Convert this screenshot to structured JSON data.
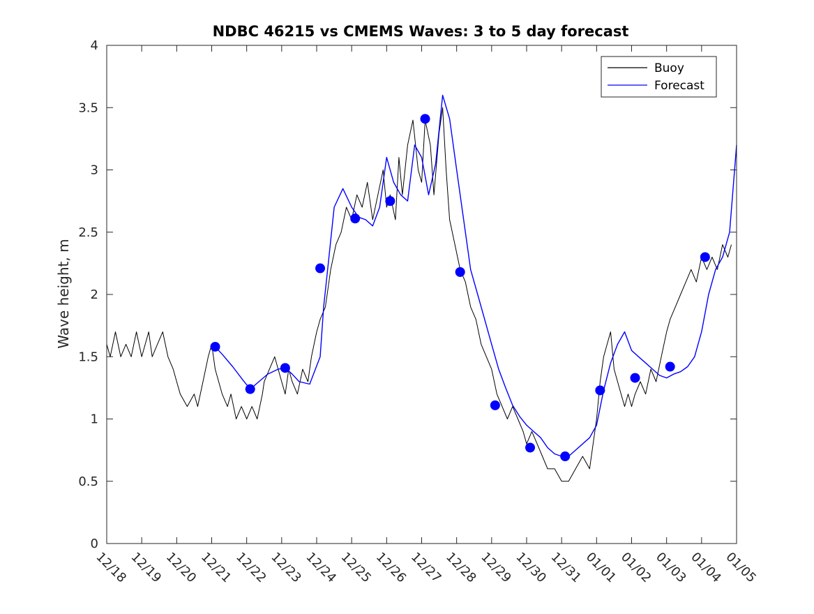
{
  "chart_data": {
    "type": "line",
    "title": "NDBC 46215 vs CMEMS Waves: 3 to 5 day forecast",
    "xlabel": "",
    "ylabel": "Wave height, m",
    "x_tick_labels": [
      "12/18",
      "12/19",
      "12/20",
      "12/21",
      "12/22",
      "12/23",
      "12/24",
      "12/25",
      "12/26",
      "12/27",
      "12/28",
      "12/29",
      "12/30",
      "12/31",
      "01/01",
      "01/02",
      "01/03",
      "01/04",
      "01/05"
    ],
    "y_ticks": [
      0,
      0.5,
      1,
      1.5,
      2,
      2.5,
      3,
      3.5,
      4
    ],
    "x_range_days": [
      0,
      18
    ],
    "ylim": [
      0,
      4
    ],
    "grid": false,
    "legend": {
      "placement": "top-right",
      "entries": [
        "Buoy",
        "Forecast"
      ]
    },
    "colors": {
      "buoy": "#000000",
      "forecast": "#0000ff",
      "axes": "#262626"
    },
    "series": [
      {
        "name": "Buoy",
        "style": "line",
        "x": [
          0,
          0.1,
          0.25,
          0.4,
          0.55,
          0.7,
          0.85,
          1.0,
          1.1,
          1.2,
          1.3,
          1.45,
          1.6,
          1.75,
          1.9,
          2.0,
          2.1,
          2.3,
          2.5,
          2.6,
          2.75,
          2.9,
          3.0,
          3.1,
          3.2,
          3.3,
          3.45,
          3.55,
          3.7,
          3.85,
          4.0,
          4.15,
          4.3,
          4.45,
          4.5,
          4.65,
          4.8,
          4.9,
          5.0,
          5.1,
          5.2,
          5.3,
          5.45,
          5.6,
          5.75,
          5.85,
          6.0,
          6.1,
          6.25,
          6.4,
          6.55,
          6.7,
          6.85,
          7.0,
          7.15,
          7.3,
          7.45,
          7.6,
          7.75,
          7.9,
          8.0,
          8.1,
          8.25,
          8.35,
          8.45,
          8.6,
          8.75,
          8.9,
          9.0,
          9.1,
          9.25,
          9.35,
          9.5,
          9.6,
          9.7,
          9.8,
          9.95,
          10.1,
          10.25,
          10.4,
          10.55,
          10.7,
          10.85,
          11.0,
          11.15,
          11.3,
          11.45,
          11.6,
          11.75,
          11.9,
          12.0,
          12.15,
          12.3,
          12.45,
          12.6,
          12.8,
          13.0,
          13.2,
          13.4,
          13.6,
          13.8,
          14.0,
          14.1,
          14.2,
          14.3,
          14.4,
          14.5,
          14.6,
          14.7,
          14.8,
          14.9,
          15.0,
          15.1,
          15.25,
          15.4,
          15.55,
          15.7,
          15.85,
          16.0,
          16.1,
          16.25,
          16.4,
          16.55,
          16.7,
          16.85,
          17.0,
          17.15,
          17.3,
          17.45,
          17.6,
          17.75,
          17.85
        ],
        "y": [
          1.6,
          1.5,
          1.7,
          1.5,
          1.6,
          1.5,
          1.7,
          1.5,
          1.6,
          1.7,
          1.5,
          1.6,
          1.7,
          1.5,
          1.4,
          1.3,
          1.2,
          1.1,
          1.2,
          1.1,
          1.3,
          1.5,
          1.6,
          1.4,
          1.3,
          1.2,
          1.1,
          1.2,
          1.0,
          1.1,
          1.0,
          1.1,
          1.0,
          1.2,
          1.3,
          1.4,
          1.5,
          1.4,
          1.3,
          1.2,
          1.4,
          1.3,
          1.2,
          1.4,
          1.3,
          1.5,
          1.7,
          1.8,
          1.9,
          2.2,
          2.4,
          2.5,
          2.7,
          2.6,
          2.8,
          2.7,
          2.9,
          2.6,
          2.8,
          3.0,
          2.7,
          2.8,
          2.6,
          3.1,
          2.8,
          3.2,
          3.4,
          3.0,
          2.9,
          3.4,
          3.2,
          2.8,
          3.3,
          3.5,
          3.0,
          2.6,
          2.4,
          2.2,
          2.1,
          1.9,
          1.8,
          1.6,
          1.5,
          1.4,
          1.2,
          1.1,
          1.0,
          1.1,
          1.0,
          0.9,
          0.8,
          0.9,
          0.8,
          0.7,
          0.6,
          0.6,
          0.5,
          0.5,
          0.6,
          0.7,
          0.6,
          1.0,
          1.3,
          1.5,
          1.6,
          1.7,
          1.4,
          1.3,
          1.2,
          1.1,
          1.2,
          1.1,
          1.2,
          1.3,
          1.2,
          1.4,
          1.3,
          1.5,
          1.7,
          1.8,
          1.9,
          2.0,
          2.1,
          2.2,
          2.1,
          2.3,
          2.2,
          2.3,
          2.2,
          2.4,
          2.3,
          2.4
        ]
      },
      {
        "name": "Forecast",
        "style": "line",
        "x": [
          3.1,
          3.3,
          3.6,
          3.9,
          4.1,
          4.35,
          4.6,
          4.9,
          5.1,
          5.3,
          5.5,
          5.8,
          6.1,
          6.2,
          6.35,
          6.5,
          6.75,
          7.0,
          7.2,
          7.4,
          7.6,
          7.8,
          8.0,
          8.2,
          8.4,
          8.6,
          8.8,
          9.0,
          9.2,
          9.4,
          9.6,
          9.8,
          10.0,
          10.2,
          10.4,
          10.6,
          10.8,
          11.0,
          11.2,
          11.4,
          11.6,
          11.8,
          12.0,
          12.2,
          12.4,
          12.6,
          12.8,
          13.0,
          13.2,
          13.4,
          13.6,
          13.8,
          14.0,
          14.2,
          14.4,
          14.6,
          14.8,
          15.0,
          15.2,
          15.4,
          15.6,
          15.8,
          16.0,
          16.2,
          16.4,
          16.6,
          16.8,
          17.0,
          17.2,
          17.4,
          17.6,
          17.8,
          18.0
        ],
        "y": [
          1.58,
          1.52,
          1.42,
          1.31,
          1.24,
          1.3,
          1.36,
          1.4,
          1.41,
          1.36,
          1.3,
          1.28,
          1.5,
          1.9,
          2.3,
          2.7,
          2.85,
          2.7,
          2.62,
          2.6,
          2.55,
          2.7,
          3.1,
          2.9,
          2.8,
          2.75,
          3.2,
          3.1,
          2.8,
          3.05,
          3.6,
          3.41,
          3.0,
          2.6,
          2.2,
          2.0,
          1.8,
          1.6,
          1.4,
          1.25,
          1.11,
          1.02,
          0.95,
          0.9,
          0.85,
          0.77,
          0.72,
          0.7,
          0.7,
          0.75,
          0.8,
          0.85,
          0.95,
          1.23,
          1.45,
          1.6,
          1.7,
          1.55,
          1.5,
          1.45,
          1.4,
          1.35,
          1.33,
          1.36,
          1.38,
          1.42,
          1.5,
          1.7,
          2.0,
          2.2,
          2.3,
          2.5,
          3.2
        ]
      },
      {
        "name": "",
        "style": "markers",
        "x": [
          3.1,
          4.1,
          5.1,
          6.1,
          7.1,
          8.1,
          9.1,
          10.1,
          11.1,
          12.1,
          13.1,
          14.1,
          15.1,
          16.1,
          17.1
        ],
        "y": [
          1.58,
          1.24,
          1.41,
          2.21,
          2.61,
          2.75,
          3.41,
          2.18,
          1.11,
          0.77,
          0.7,
          1.23,
          1.33,
          1.42,
          2.3
        ]
      }
    ]
  }
}
